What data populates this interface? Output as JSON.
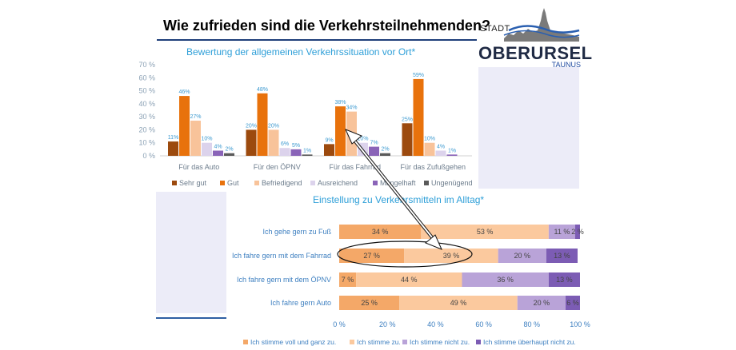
{
  "header": {
    "title": "Wie zufrieden sind die Verkehrsteilnehmenden?"
  },
  "logo": {
    "stadt": "STADT",
    "name": "OBERURSEL",
    "region": "TAUNUS"
  },
  "colors": {
    "sehr_gut": "#9c4a0e",
    "gut": "#e8720c",
    "befriedigend": "#f8c39a",
    "ausreichend": "#dcd3ec",
    "mangelhaft": "#8a64b8",
    "ungenuegend": "#5a5a5a",
    "title_blue": "#2e9fd8",
    "stack_1": "#f4a868",
    "stack_2": "#fbc99e",
    "stack_3": "#b9a3d8",
    "stack_4": "#7c5cb4"
  },
  "chart_data": [
    {
      "type": "bar",
      "title": "Bewertung der allgemeinen Verkehrssituation vor Ort*",
      "categories": [
        "Für das Auto",
        "Für den ÖPNV",
        "Für das Fahrrad",
        "Für das Zufußgehen"
      ],
      "y_ticks": [
        "0 %",
        "10 %",
        "20 %",
        "30 %",
        "40 %",
        "50 %",
        "60 %",
        "70 %"
      ],
      "ylim": [
        0,
        70
      ],
      "grid": false,
      "legend_position": "bottom",
      "series": [
        {
          "name": "Sehr gut",
          "values": [
            11,
            20,
            9,
            25
          ],
          "labels": [
            "11%",
            "20%",
            "9%",
            "25%"
          ]
        },
        {
          "name": "Gut",
          "values": [
            46,
            48,
            38,
            59
          ],
          "labels": [
            "46%",
            "48%",
            "38%",
            "59%"
          ]
        },
        {
          "name": "Befriedigend",
          "values": [
            27,
            20,
            34,
            10
          ],
          "labels": [
            "27%",
            "20%",
            "34%",
            "10%"
          ]
        },
        {
          "name": "Ausreichend",
          "values": [
            10,
            6,
            10,
            4
          ],
          "labels": [
            "10%",
            "6%",
            "10%",
            "4%"
          ]
        },
        {
          "name": "Mangelhaft",
          "values": [
            4,
            5,
            7,
            1
          ],
          "labels": [
            "4%",
            "5%",
            "7%",
            "1%"
          ]
        },
        {
          "name": "Ungenügend",
          "values": [
            2,
            1,
            2,
            0
          ],
          "labels": [
            "2%",
            "1%",
            "2%",
            ""
          ]
        }
      ]
    },
    {
      "type": "bar",
      "orientation": "horizontal",
      "stacked": true,
      "title": "Einstellung zu Verkehrsmitteln im Alltag*",
      "categories": [
        "Ich gehe gern zu Fuß",
        "Ich fahre gern mit dem Fahrrad",
        "Ich fahre gern mit dem ÖPNV",
        "Ich fahre gern Auto"
      ],
      "x_ticks": [
        "0 %",
        "20 %",
        "40 %",
        "60 %",
        "80 %",
        "100 %"
      ],
      "xlim": [
        0,
        100
      ],
      "grid": false,
      "legend_position": "bottom",
      "series": [
        {
          "name": "Ich stimme voll und ganz zu.",
          "values": [
            34,
            27,
            7,
            25
          ],
          "labels": [
            "34 %",
            "27 %",
            "7 %",
            "25 %"
          ]
        },
        {
          "name": "Ich stimme zu.",
          "values": [
            53,
            39,
            44,
            49
          ],
          "labels": [
            "53 %",
            "39 %",
            "44 %",
            "49 %"
          ]
        },
        {
          "name": "Ich stimme nicht zu.",
          "values": [
            11,
            20,
            36,
            20
          ],
          "labels": [
            "11 %",
            "20 %",
            "36 %",
            "20 %"
          ]
        },
        {
          "name": "Ich stimme überhaupt nicht zu.",
          "values": [
            2,
            13,
            13,
            6
          ],
          "labels": [
            "2 %",
            "13 %",
            "13 %",
            "6 %"
          ]
        }
      ]
    }
  ]
}
